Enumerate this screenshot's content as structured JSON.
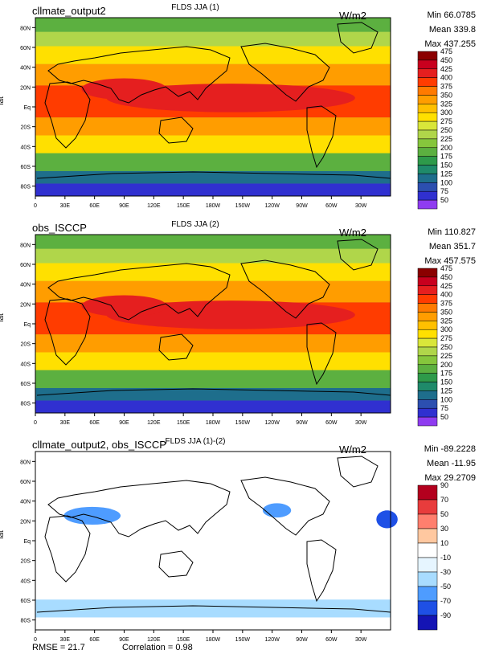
{
  "chart_data": [
    {
      "type": "heatmap",
      "case_name": "cllmate_output2",
      "title": "FLDS JJA (1)",
      "units": "W/m2",
      "ylabel": "lat",
      "stats": {
        "min_label": "Min 66.0785",
        "mean_label": "Mean 339.8",
        "max_label": "Max 437.255"
      },
      "x_ticks": [
        "0",
        "30E",
        "60E",
        "90E",
        "120E",
        "150E",
        "180W",
        "150W",
        "120W",
        "90W",
        "60W",
        "30W"
      ],
      "y_ticks": [
        "80N",
        "60N",
        "40N",
        "20N",
        "Eq",
        "20S",
        "40S",
        "60S",
        "80S"
      ],
      "colorbar_levels": [
        "475",
        "450",
        "425",
        "400",
        "375",
        "350",
        "325",
        "300",
        "275",
        "250",
        "225",
        "200",
        "175",
        "150",
        "125",
        "100",
        "75",
        "50"
      ],
      "colors": [
        "#8b0000",
        "#c8001e",
        "#e51f1f",
        "#ff3c00",
        "#ff7a00",
        "#ff9d00",
        "#ffc000",
        "#ffe000",
        "#d9e63a",
        "#b0d64a",
        "#86c63c",
        "#5cb040",
        "#2e9a4a",
        "#1f8a6a",
        "#1e6e8c",
        "#2c4fb0",
        "#3030d0",
        "#8f3cf0"
      ],
      "x_range": [
        0,
        360
      ],
      "y_range": [
        -90,
        90
      ]
    },
    {
      "type": "heatmap",
      "case_name": "obs_ISCCP",
      "title": "FLDS JJA (2)",
      "units": "W/m2",
      "ylabel": "lat",
      "stats": {
        "min_label": "Min 110.827",
        "mean_label": "Mean 351.7",
        "max_label": "Max 457.575"
      },
      "x_ticks": [
        "0",
        "30E",
        "60E",
        "90E",
        "120E",
        "150E",
        "180W",
        "150W",
        "120W",
        "90W",
        "60W",
        "30W"
      ],
      "y_ticks": [
        "80N",
        "60N",
        "40N",
        "20N",
        "Eq",
        "20S",
        "40S",
        "60S",
        "80S"
      ],
      "colorbar_levels": [
        "475",
        "450",
        "425",
        "400",
        "375",
        "350",
        "325",
        "300",
        "275",
        "250",
        "225",
        "200",
        "175",
        "150",
        "125",
        "100",
        "75",
        "50"
      ],
      "colors": [
        "#8b0000",
        "#c8001e",
        "#e51f1f",
        "#ff3c00",
        "#ff7a00",
        "#ff9d00",
        "#ffc000",
        "#ffe000",
        "#d9e63a",
        "#b0d64a",
        "#86c63c",
        "#5cb040",
        "#2e9a4a",
        "#1f8a6a",
        "#1e6e8c",
        "#2c4fb0",
        "#3030d0",
        "#8f3cf0"
      ],
      "x_range": [
        0,
        360
      ],
      "y_range": [
        -90,
        90
      ]
    },
    {
      "type": "heatmap",
      "case_name": "cllmate_output2, obs_ISCCP",
      "title": "FLDS JJA (1)-(2)",
      "units": "W/m2",
      "ylabel": "lat",
      "stats": {
        "min_label": "Min -89.2228",
        "mean_label": "Mean -11.95",
        "max_label": "Max 29.2709"
      },
      "x_ticks": [
        "0",
        "30E",
        "60E",
        "90E",
        "120E",
        "150E",
        "180W",
        "150W",
        "120W",
        "90W",
        "60W",
        "30W"
      ],
      "y_ticks": [
        "80N",
        "60N",
        "40N",
        "20N",
        "Eq",
        "20S",
        "40S",
        "60S",
        "80S"
      ],
      "colorbar_levels": [
        "90",
        "70",
        "50",
        "30",
        "10",
        "-10",
        "-30",
        "-50",
        "-70",
        "-90"
      ],
      "colors": [
        "#b3001e",
        "#e83c3c",
        "#ff7f6e",
        "#ffc8a0",
        "#ffffff",
        "#e6f5ff",
        "#a8dcff",
        "#4e9cff",
        "#1e50e6",
        "#1414b4"
      ],
      "x_range": [
        0,
        360
      ],
      "y_range": [
        -90,
        90
      ]
    }
  ],
  "footer": {
    "rmse_label": "RMSE = 21.7",
    "correlation_label": "Correlation = 0.98"
  }
}
